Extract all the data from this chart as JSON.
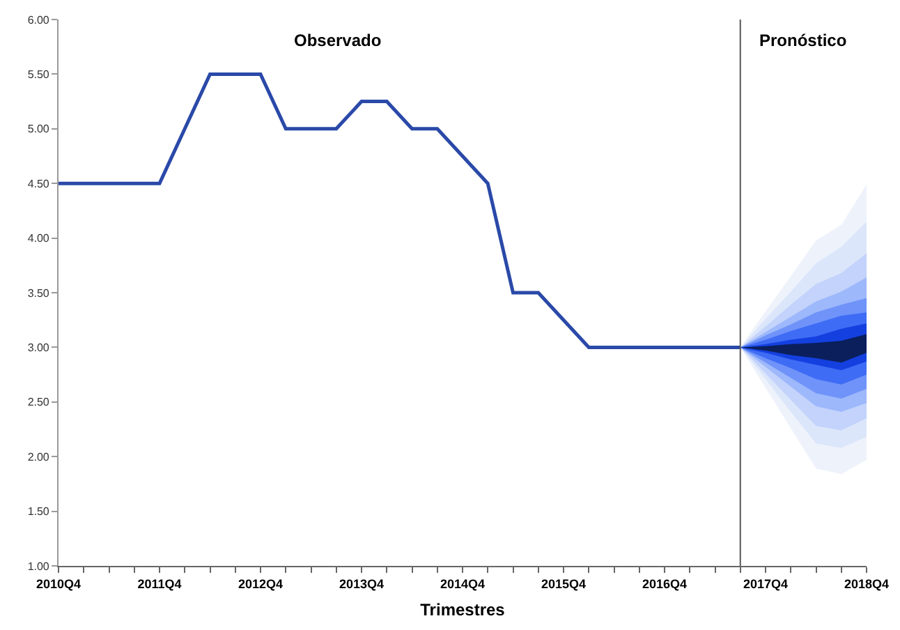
{
  "chart_data": {
    "type": "line",
    "xlabel": "Trimestres",
    "annotations": [
      "Observado",
      "Pronóstico"
    ],
    "categories": [
      "2010Q4",
      null,
      null,
      null,
      "2011Q4",
      null,
      null,
      null,
      "2012Q4",
      null,
      null,
      null,
      "2013Q4",
      null,
      null,
      null,
      "2014Q4",
      null,
      null,
      null,
      "2015Q4",
      null,
      null,
      null,
      "2016Q4",
      null,
      null,
      null,
      "2017Q4",
      null,
      null,
      null,
      "2018Q4"
    ],
    "series": [
      {
        "color": "#2a49a8",
        "values": [
          4.5,
          4.5,
          4.5,
          4.5,
          4.5,
          5.0,
          5.5,
          5.5,
          5.5,
          5.0,
          5.0,
          5.0,
          5.25,
          5.25,
          5.0,
          5.0,
          4.75,
          4.5,
          3.5,
          3.5,
          3.25,
          3.0,
          3.0,
          3.0,
          3.0,
          3.0,
          3.0,
          3.0,
          null,
          null,
          null,
          null,
          null
        ]
      },
      {
        "type": "area",
        "color": "#eef2fb",
        "values": [
          null,
          null,
          null,
          null,
          null,
          null,
          null,
          null,
          null,
          null,
          null,
          null,
          null,
          null,
          null,
          null,
          null,
          null,
          null,
          null,
          null,
          null,
          null,
          null,
          null,
          null,
          null,
          null,
          null,
          null,
          null,
          null,
          null
        ],
        "upper": [
          null,
          null,
          null,
          null,
          null,
          null,
          null,
          null,
          null,
          null,
          null,
          null,
          null,
          null,
          null,
          null,
          null,
          null,
          null,
          null,
          null,
          null,
          null,
          null,
          null,
          null,
          null,
          3.0,
          3.33,
          3.65,
          3.98,
          4.12,
          4.49
        ],
        "lower": [
          null,
          null,
          null,
          null,
          null,
          null,
          null,
          null,
          null,
          null,
          null,
          null,
          null,
          null,
          null,
          null,
          null,
          null,
          null,
          null,
          null,
          null,
          null,
          null,
          null,
          null,
          null,
          3.0,
          2.63,
          2.26,
          1.89,
          1.84,
          1.97
        ]
      },
      {
        "type": "area",
        "color": "#dce6fb",
        "values": [
          null,
          null,
          null,
          null,
          null,
          null,
          null,
          null,
          null,
          null,
          null,
          null,
          null,
          null,
          null,
          null,
          null,
          null,
          null,
          null,
          null,
          null,
          null,
          null,
          null,
          null,
          null,
          null,
          null,
          null,
          null,
          null,
          null
        ],
        "upper": [
          null,
          null,
          null,
          null,
          null,
          null,
          null,
          null,
          null,
          null,
          null,
          null,
          null,
          null,
          null,
          null,
          null,
          null,
          null,
          null,
          null,
          null,
          null,
          null,
          null,
          null,
          null,
          3.0,
          3.26,
          3.51,
          3.77,
          3.92,
          4.15
        ],
        "lower": [
          null,
          null,
          null,
          null,
          null,
          null,
          null,
          null,
          null,
          null,
          null,
          null,
          null,
          null,
          null,
          null,
          null,
          null,
          null,
          null,
          null,
          null,
          null,
          null,
          null,
          null,
          null,
          3.0,
          2.71,
          2.41,
          2.12,
          2.08,
          2.18
        ]
      },
      {
        "type": "area",
        "color": "#c3d3fb",
        "values": [
          null,
          null,
          null,
          null,
          null,
          null,
          null,
          null,
          null,
          null,
          null,
          null,
          null,
          null,
          null,
          null,
          null,
          null,
          null,
          null,
          null,
          null,
          null,
          null,
          null,
          null,
          null,
          null,
          null,
          null,
          null,
          null,
          null
        ],
        "upper": [
          null,
          null,
          null,
          null,
          null,
          null,
          null,
          null,
          null,
          null,
          null,
          null,
          null,
          null,
          null,
          null,
          null,
          null,
          null,
          null,
          null,
          null,
          null,
          null,
          null,
          null,
          null,
          3.0,
          3.19,
          3.39,
          3.58,
          3.68,
          3.86
        ],
        "lower": [
          null,
          null,
          null,
          null,
          null,
          null,
          null,
          null,
          null,
          null,
          null,
          null,
          null,
          null,
          null,
          null,
          null,
          null,
          null,
          null,
          null,
          null,
          null,
          null,
          null,
          null,
          null,
          3.0,
          2.76,
          2.52,
          2.28,
          2.24,
          2.35
        ]
      },
      {
        "type": "area",
        "color": "#9db8fb",
        "values": [
          null,
          null,
          null,
          null,
          null,
          null,
          null,
          null,
          null,
          null,
          null,
          null,
          null,
          null,
          null,
          null,
          null,
          null,
          null,
          null,
          null,
          null,
          null,
          null,
          null,
          null,
          null,
          null,
          null,
          null,
          null,
          null,
          null
        ],
        "upper": [
          null,
          null,
          null,
          null,
          null,
          null,
          null,
          null,
          null,
          null,
          null,
          null,
          null,
          null,
          null,
          null,
          null,
          null,
          null,
          null,
          null,
          null,
          null,
          null,
          null,
          null,
          null,
          3.0,
          3.14,
          3.28,
          3.42,
          3.51,
          3.64
        ],
        "lower": [
          null,
          null,
          null,
          null,
          null,
          null,
          null,
          null,
          null,
          null,
          null,
          null,
          null,
          null,
          null,
          null,
          null,
          null,
          null,
          null,
          null,
          null,
          null,
          null,
          null,
          null,
          null,
          3.0,
          2.82,
          2.64,
          2.46,
          2.41,
          2.49
        ]
      },
      {
        "type": "area",
        "color": "#6f93f9",
        "values": [
          null,
          null,
          null,
          null,
          null,
          null,
          null,
          null,
          null,
          null,
          null,
          null,
          null,
          null,
          null,
          null,
          null,
          null,
          null,
          null,
          null,
          null,
          null,
          null,
          null,
          null,
          null,
          null,
          null,
          null,
          null,
          null,
          null
        ],
        "upper": [
          null,
          null,
          null,
          null,
          null,
          null,
          null,
          null,
          null,
          null,
          null,
          null,
          null,
          null,
          null,
          null,
          null,
          null,
          null,
          null,
          null,
          null,
          null,
          null,
          null,
          null,
          null,
          3.0,
          3.11,
          3.21,
          3.32,
          3.39,
          3.45
        ],
        "lower": [
          null,
          null,
          null,
          null,
          null,
          null,
          null,
          null,
          null,
          null,
          null,
          null,
          null,
          null,
          null,
          null,
          null,
          null,
          null,
          null,
          null,
          null,
          null,
          null,
          null,
          null,
          null,
          3.0,
          2.86,
          2.72,
          2.58,
          2.53,
          2.62
        ]
      },
      {
        "type": "area",
        "color": "#3f6cf5",
        "values": [
          null,
          null,
          null,
          null,
          null,
          null,
          null,
          null,
          null,
          null,
          null,
          null,
          null,
          null,
          null,
          null,
          null,
          null,
          null,
          null,
          null,
          null,
          null,
          null,
          null,
          null,
          null,
          null,
          null,
          null,
          null,
          null,
          null
        ],
        "upper": [
          null,
          null,
          null,
          null,
          null,
          null,
          null,
          null,
          null,
          null,
          null,
          null,
          null,
          null,
          null,
          null,
          null,
          null,
          null,
          null,
          null,
          null,
          null,
          null,
          null,
          null,
          null,
          3.0,
          3.07,
          3.15,
          3.22,
          3.29,
          3.32
        ],
        "lower": [
          null,
          null,
          null,
          null,
          null,
          null,
          null,
          null,
          null,
          null,
          null,
          null,
          null,
          null,
          null,
          null,
          null,
          null,
          null,
          null,
          null,
          null,
          null,
          null,
          null,
          null,
          null,
          3.0,
          2.9,
          2.81,
          2.71,
          2.66,
          2.75
        ]
      },
      {
        "type": "area",
        "color": "#1440e0",
        "values": [
          null,
          null,
          null,
          null,
          null,
          null,
          null,
          null,
          null,
          null,
          null,
          null,
          null,
          null,
          null,
          null,
          null,
          null,
          null,
          null,
          null,
          null,
          null,
          null,
          null,
          null,
          null,
          null,
          null,
          null,
          null,
          null,
          null
        ],
        "upper": [
          null,
          null,
          null,
          null,
          null,
          null,
          null,
          null,
          null,
          null,
          null,
          null,
          null,
          null,
          null,
          null,
          null,
          null,
          null,
          null,
          null,
          null,
          null,
          null,
          null,
          null,
          null,
          3.0,
          3.03,
          3.07,
          3.1,
          3.17,
          3.22
        ],
        "lower": [
          null,
          null,
          null,
          null,
          null,
          null,
          null,
          null,
          null,
          null,
          null,
          null,
          null,
          null,
          null,
          null,
          null,
          null,
          null,
          null,
          null,
          null,
          null,
          null,
          null,
          null,
          null,
          3.0,
          2.95,
          2.89,
          2.84,
          2.79,
          2.87
        ]
      },
      {
        "type": "area",
        "color": "#0a1f5c",
        "values": [
          null,
          null,
          null,
          null,
          null,
          null,
          null,
          null,
          null,
          null,
          null,
          null,
          null,
          null,
          null,
          null,
          null,
          null,
          null,
          null,
          null,
          null,
          null,
          null,
          null,
          null,
          null,
          null,
          null,
          null,
          null,
          null,
          null
        ],
        "upper": [
          null,
          null,
          null,
          null,
          null,
          null,
          null,
          null,
          null,
          null,
          null,
          null,
          null,
          null,
          null,
          null,
          null,
          null,
          null,
          null,
          null,
          null,
          null,
          null,
          null,
          null,
          null,
          3.0,
          3.01,
          3.03,
          3.04,
          3.06,
          3.12
        ],
        "lower": [
          null,
          null,
          null,
          null,
          null,
          null,
          null,
          null,
          null,
          null,
          null,
          null,
          null,
          null,
          null,
          null,
          null,
          null,
          null,
          null,
          null,
          null,
          null,
          null,
          null,
          null,
          null,
          3.0,
          2.97,
          2.93,
          2.9,
          2.86,
          2.95
        ]
      }
    ],
    "ylim": [
      1.0,
      6.0
    ],
    "yticks": [
      {
        "value": 1.0,
        "label": "1.00"
      },
      {
        "value": 1.5,
        "label": "1.50"
      },
      {
        "value": 2.0,
        "label": "2.00"
      },
      {
        "value": 2.5,
        "label": "2.50"
      },
      {
        "value": 3.0,
        "label": "3.00"
      },
      {
        "value": 3.5,
        "label": "3.50"
      },
      {
        "value": 4.0,
        "label": "4.00"
      },
      {
        "value": 4.5,
        "label": "4.50"
      },
      {
        "value": 5.0,
        "label": "5.00"
      },
      {
        "value": 5.5,
        "label": "5.50"
      },
      {
        "value": 6.0,
        "label": "6.00"
      }
    ],
    "marker": "none",
    "line_style": "solid"
  }
}
